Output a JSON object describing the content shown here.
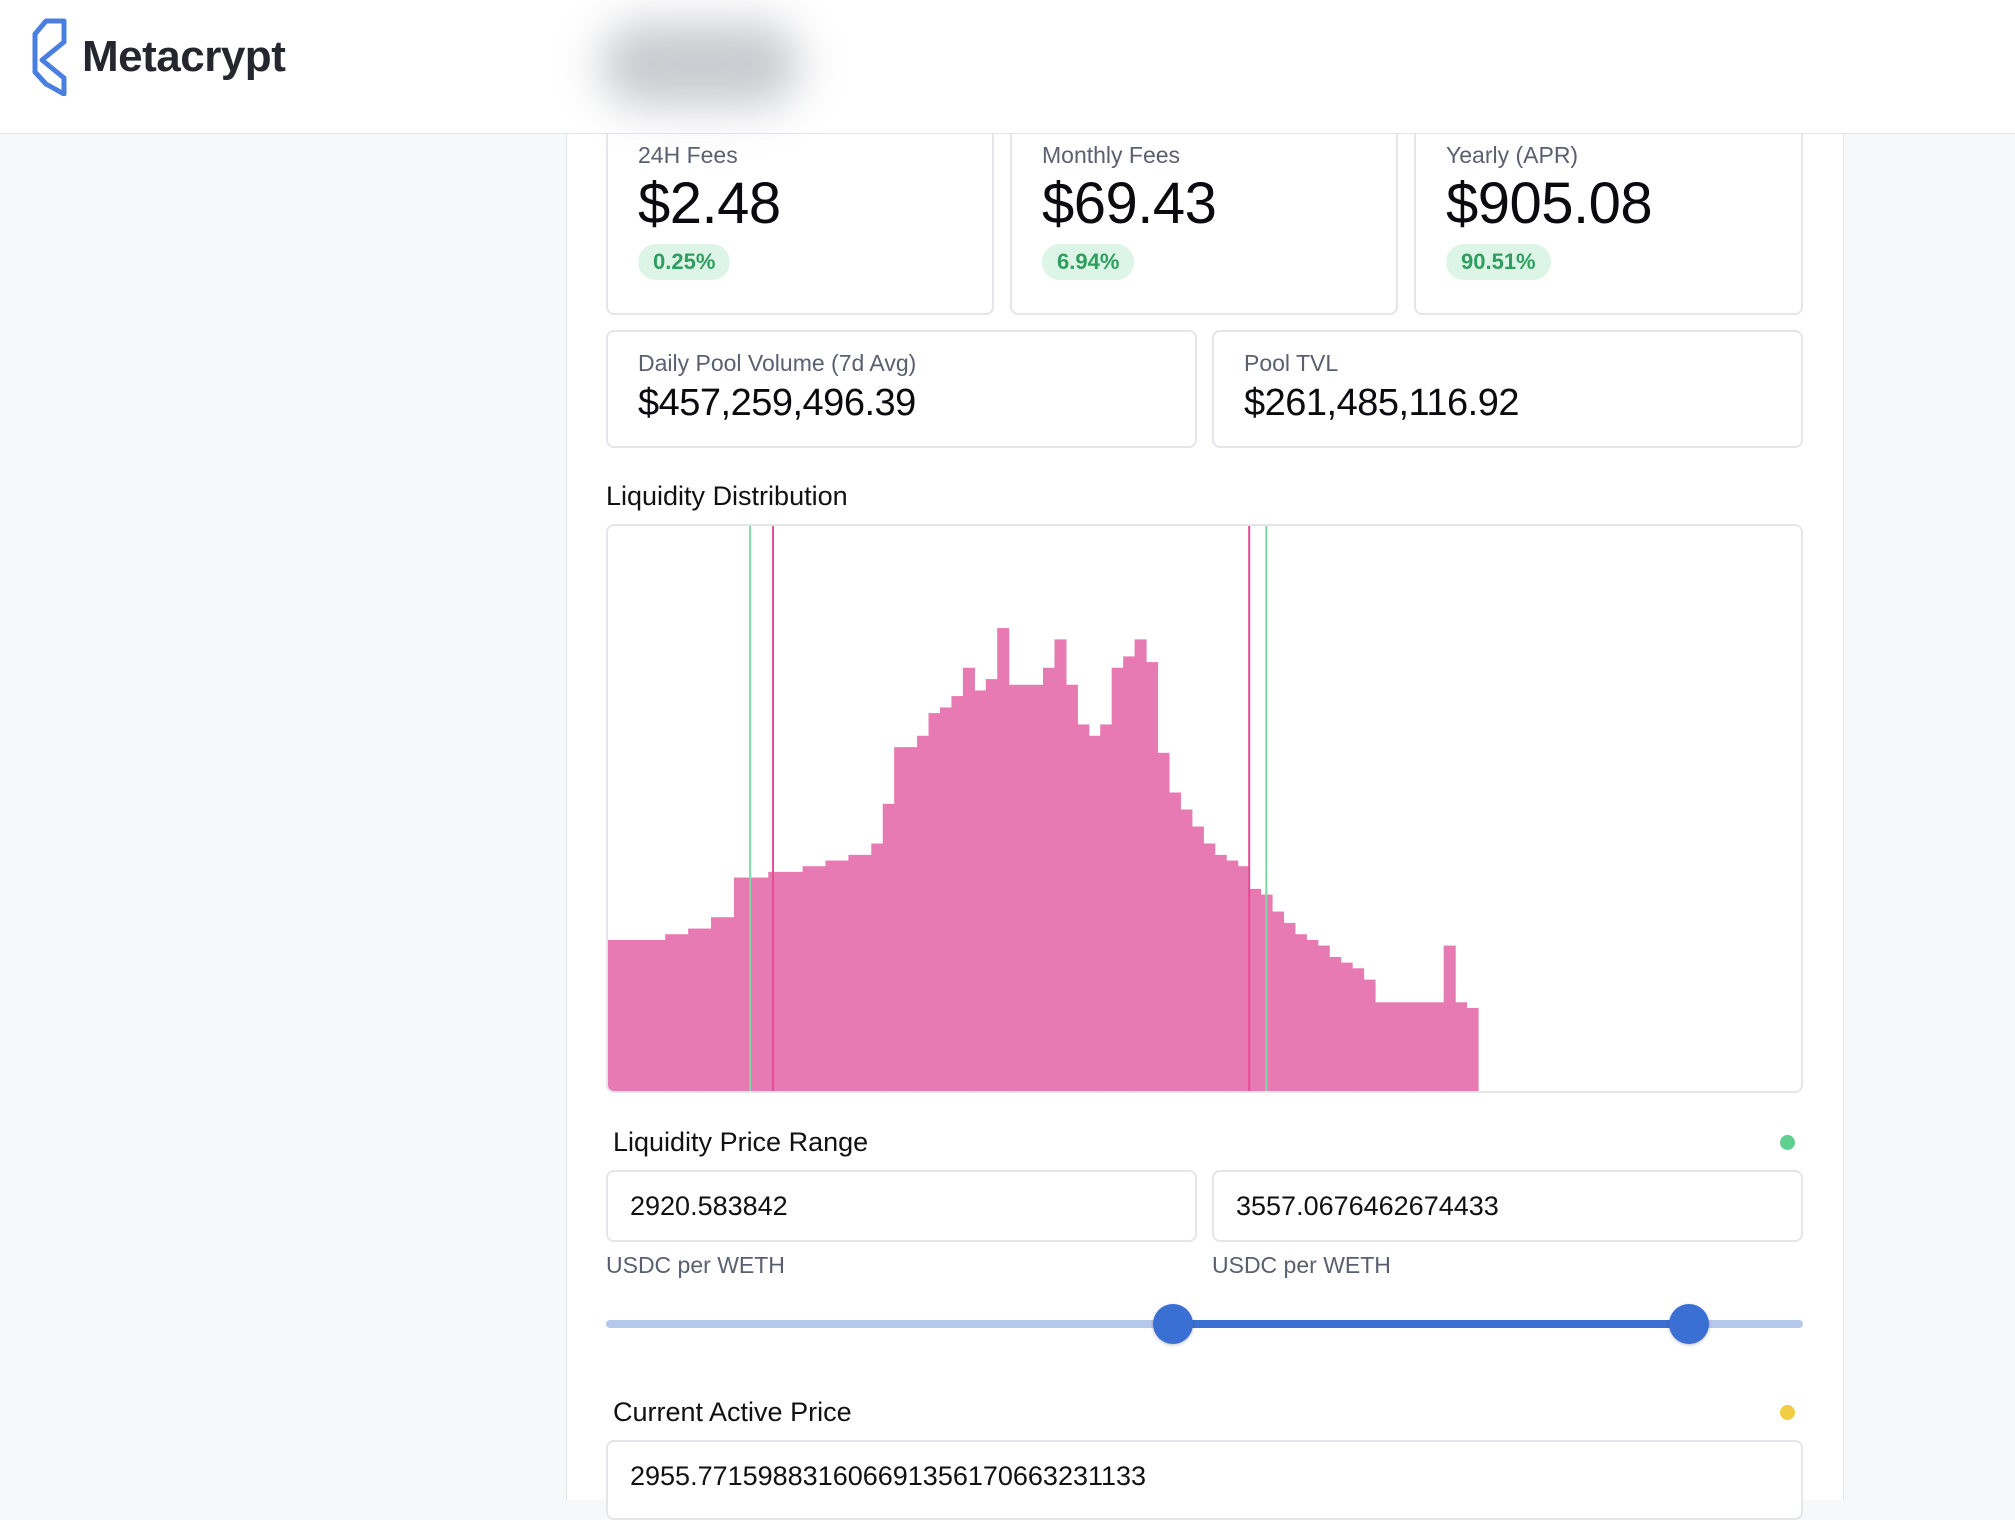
{
  "header": {
    "brand": "Metacrypt",
    "logo_icon": "metacrypt-logo-icon"
  },
  "fees": [
    {
      "label": "24H Fees",
      "value": "$2.48",
      "percent": "0.25%"
    },
    {
      "label": "Monthly Fees",
      "value": "$69.43",
      "percent": "6.94%"
    },
    {
      "label": "Yearly (APR)",
      "value": "$905.08",
      "percent": "90.51%"
    }
  ],
  "pool": {
    "volume_label": "Daily Pool Volume (7d Avg)",
    "volume_value": "$457,259,496.39",
    "tvl_label": "Pool TVL",
    "tvl_value": "$261,485,116.92"
  },
  "liquidity": {
    "title": "Liquidity Distribution"
  },
  "chart_data": {
    "type": "bar",
    "title": "Liquidity Distribution",
    "bar_color": "#e77ab3",
    "range_marker_color": "#e64b97",
    "active_marker_color": "#7fd6a6",
    "values": [
      0.27,
      0.27,
      0.27,
      0.27,
      0.27,
      0.28,
      0.28,
      0.29,
      0.29,
      0.31,
      0.31,
      0.38,
      0.38,
      0.38,
      0.39,
      0.39,
      0.39,
      0.4,
      0.4,
      0.41,
      0.41,
      0.42,
      0.42,
      0.44,
      0.51,
      0.61,
      0.61,
      0.63,
      0.67,
      0.68,
      0.7,
      0.75,
      0.71,
      0.73,
      0.82,
      0.72,
      0.72,
      0.72,
      0.75,
      0.8,
      0.72,
      0.65,
      0.63,
      0.65,
      0.75,
      0.77,
      0.8,
      0.76,
      0.6,
      0.53,
      0.5,
      0.47,
      0.44,
      0.42,
      0.41,
      0.4,
      0.36,
      0.35,
      0.32,
      0.3,
      0.28,
      0.27,
      0.26,
      0.24,
      0.23,
      0.22,
      0.2,
      0.16,
      0.16,
      0.16,
      0.16,
      0.16,
      0.16,
      0.26,
      0.16,
      0.15
    ],
    "range_lines": [
      2920.583842,
      3557.0676462674433
    ],
    "active_lines": [
      2890.0,
      3580.0
    ],
    "price_range": [
      2700,
      4300
    ]
  },
  "price_range": {
    "title": "Liquidity Price Range",
    "status_color": "#5fd08f",
    "min_value": "2920.583842",
    "max_value": "3557.0676462674433",
    "min_unit": "USDC per WETH",
    "max_unit": "USDC per WETH",
    "slider_low": 0.474,
    "slider_high": 0.905
  },
  "current_price": {
    "title": "Current Active Price",
    "status_color": "#f2cc45",
    "value": "2955.771598831606691356170663231133"
  }
}
